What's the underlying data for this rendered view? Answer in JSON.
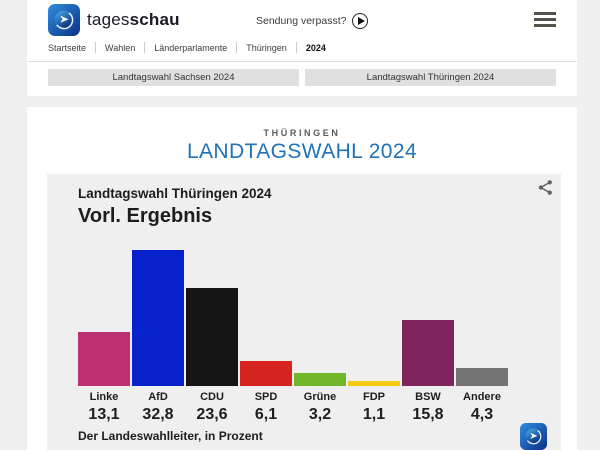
{
  "header": {
    "brand_regular": "tages",
    "brand_bold": "schau",
    "sendung_verpasst": "Sendung verpasst?"
  },
  "breadcrumb": {
    "items": [
      {
        "label": "Startseite",
        "bold": false
      },
      {
        "label": "Wahlen",
        "bold": false
      },
      {
        "label": "Länderparlamente",
        "bold": false
      },
      {
        "label": "Thüringen",
        "bold": false
      },
      {
        "label": "2024",
        "bold": true
      }
    ]
  },
  "nav_buttons": [
    {
      "label": "Landtagswahl Sachsen 2024"
    },
    {
      "label": "Landtagswahl Thüringen 2024"
    }
  ],
  "page": {
    "kicker": "THÜRINGEN",
    "title": "LANDTAGSWAHL 2024",
    "title_color": "#1f72b8"
  },
  "chart": {
    "title": "Landtagswahl Thüringen 2024",
    "subtitle": "Vorl. Ergebnis",
    "source": "Der Landeswahlleiter, in Prozent"
  },
  "chart_data": {
    "type": "bar",
    "title": "Landtagswahl Thüringen 2024 — Vorl. Ergebnis",
    "categories": [
      "Linke",
      "AfD",
      "CDU",
      "SPD",
      "Grüne",
      "FDP",
      "BSW",
      "Andere"
    ],
    "values": [
      13.1,
      32.8,
      23.6,
      6.1,
      3.2,
      1.1,
      15.8,
      4.3
    ],
    "value_labels": [
      "13,1",
      "32,8",
      "23,6",
      "6,1",
      "3,2",
      "1,1",
      "15,8",
      "4,3"
    ],
    "colors": [
      "#bd3074",
      "#0721cb",
      "#151515",
      "#d52420",
      "#72b629",
      "#f6c914",
      "#81255f",
      "#747474"
    ],
    "unit": "Prozent",
    "ylim": [
      0,
      32.8
    ],
    "xlabel": "",
    "ylabel": "",
    "grid": false,
    "legend": false
  }
}
